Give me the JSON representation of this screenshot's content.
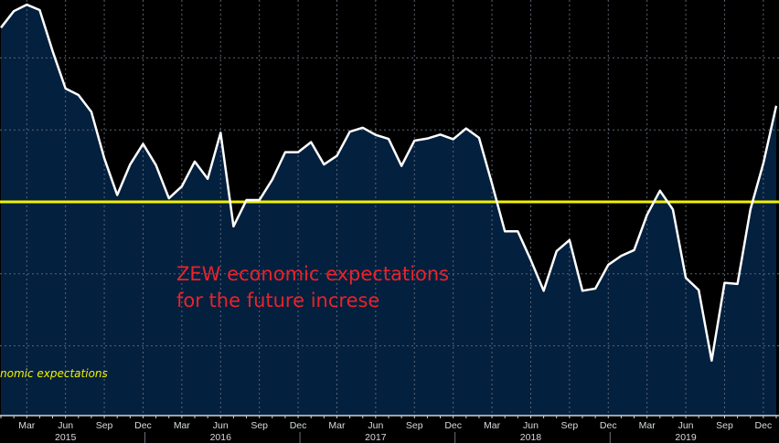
{
  "chart_data": {
    "type": "area",
    "title": "",
    "xlabel": "",
    "ylabel": "",
    "ylim": [
      -60,
      56
    ],
    "grid": true,
    "reference_line": {
      "value": 0,
      "color": "#f2f200"
    },
    "series": [
      {
        "name": "ZEW economic expectations",
        "visible_legend_text": "nomic expectations",
        "line_color": "#ffffff",
        "fill_color": "#04203f",
        "start": "2015-01",
        "values": [
          48.4,
          53.0,
          54.8,
          53.3,
          41.9,
          31.5,
          29.7,
          25.0,
          12.1,
          1.9,
          10.4,
          16.1,
          10.2,
          1.0,
          4.3,
          11.2,
          6.4,
          19.2,
          -6.8,
          0.5,
          0.5,
          6.2,
          13.8,
          13.8,
          16.6,
          10.4,
          12.8,
          19.5,
          20.6,
          18.6,
          17.5,
          10.0,
          17.0,
          17.6,
          18.7,
          17.4,
          20.4,
          17.8,
          5.1,
          -8.2,
          -8.2,
          -16.1,
          -24.7,
          -13.7,
          -10.6,
          -24.7,
          -24.1,
          -17.5,
          -15.0,
          -13.4,
          -3.6,
          3.1,
          -2.1,
          -21.1,
          -24.5,
          -44.1,
          -22.5,
          -22.8,
          -2.1,
          10.7,
          26.7
        ]
      }
    ],
    "x_tick_labels": [
      "Mar",
      "Jun",
      "Sep",
      "Dec",
      "Mar",
      "Jun",
      "Sep",
      "Dec",
      "Mar",
      "Jun",
      "Sep",
      "Dec",
      "Mar",
      "Jun",
      "Sep",
      "Dec",
      "Mar",
      "Jun",
      "Sep",
      "Dec"
    ],
    "x_years": [
      "2015",
      "2016",
      "2017",
      "2018",
      "2019"
    ],
    "annotation": [
      "ZEW economic expectations",
      "for the future increse"
    ]
  }
}
